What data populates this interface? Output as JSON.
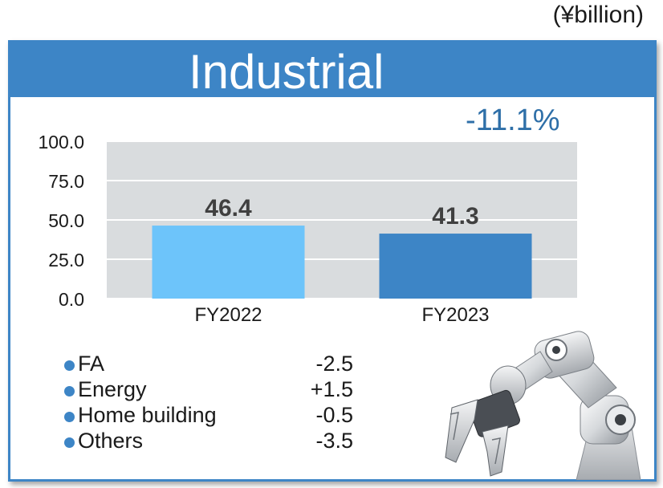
{
  "unit_label": "(¥billion)",
  "panel": {
    "title": "Industrial",
    "change": "-11.1%"
  },
  "chart_data": {
    "type": "bar",
    "categories": [
      "FY2022",
      "FY2023"
    ],
    "values": [
      46.4,
      41.3
    ],
    "value_labels": [
      "46.4",
      "41.3"
    ],
    "bar_colors": [
      "#6dc4fa",
      "#3d85c6"
    ],
    "ylim": [
      0,
      100
    ],
    "yticks": [
      "0.0",
      "25.0",
      "50.0",
      "75.0",
      "100.0"
    ],
    "grid": true,
    "plot_background": "#d9dcde"
  },
  "breakdown": [
    {
      "name": "FA",
      "value": "-2.5"
    },
    {
      "name": "Energy",
      "value": "+1.5"
    },
    {
      "name": "Home building",
      "value": "-0.5"
    },
    {
      "name": "Others",
      "value": "-3.5"
    }
  ],
  "image": {
    "icon": "robot-arm-icon"
  }
}
